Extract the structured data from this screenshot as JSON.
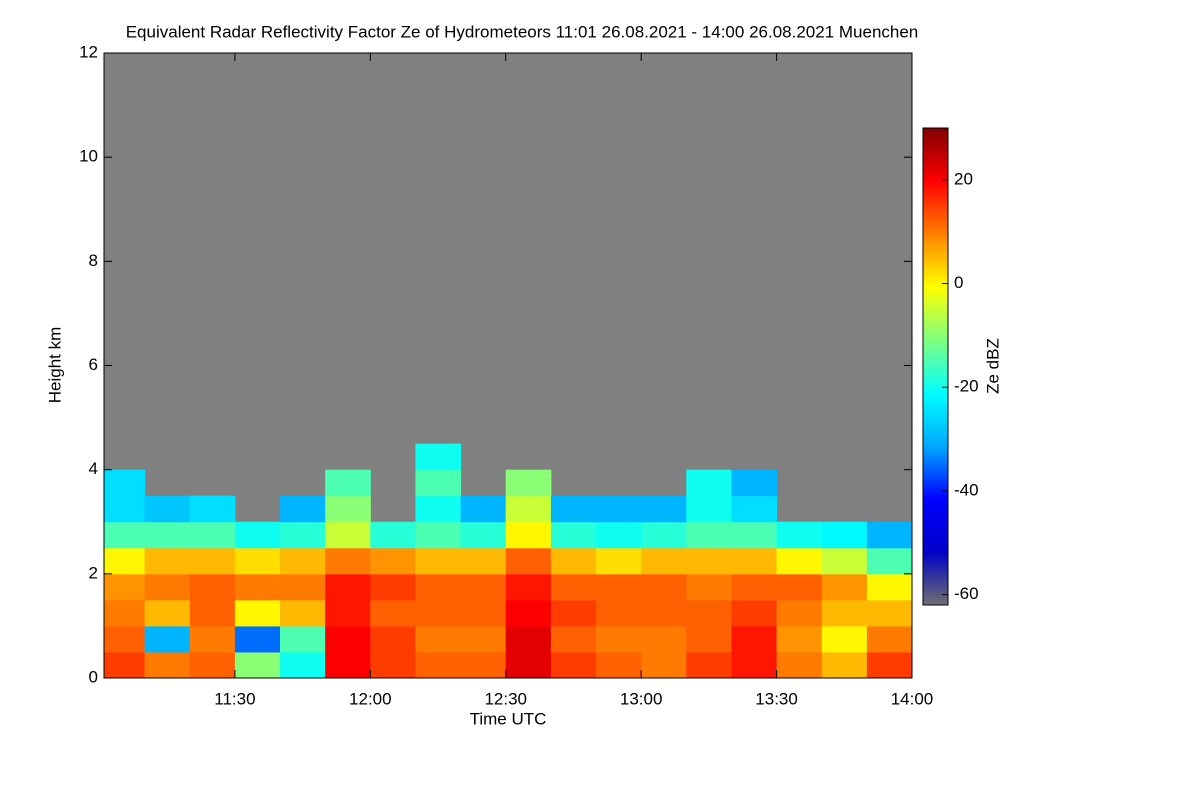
{
  "chart_data": {
    "type": "heatmap",
    "title": "Equivalent Radar Reflectivity Factor Ze of Hydrometeors   11:01 26.08.2021 - 14:00 26.08.2021 Muenchen",
    "x_label": "Time UTC",
    "y_label": "Height km",
    "colorbar_label": "Ze dBZ",
    "x": [
      11.0833,
      11.25,
      11.4167,
      11.5833,
      11.75,
      11.9167,
      12.0833,
      12.25,
      12.4167,
      12.5833,
      12.75,
      12.9167,
      13.0833,
      13.25,
      13.4167,
      13.5833,
      13.75,
      13.9167
    ],
    "y": [
      0.25,
      0.75,
      1.25,
      1.75,
      2.25,
      2.75,
      3.25,
      3.75,
      4.25
    ],
    "z": [
      [
        15,
        10,
        12,
        -10,
        -20,
        20,
        15,
        12,
        12,
        22,
        15,
        12,
        10,
        15,
        18,
        10,
        5,
        15
      ],
      [
        12,
        -30,
        10,
        -35,
        -15,
        20,
        15,
        10,
        10,
        22,
        12,
        10,
        10,
        12,
        18,
        8,
        0,
        10
      ],
      [
        10,
        5,
        12,
        0,
        5,
        18,
        12,
        12,
        12,
        20,
        15,
        12,
        12,
        12,
        15,
        10,
        5,
        5
      ],
      [
        8,
        10,
        12,
        10,
        10,
        18,
        15,
        12,
        12,
        18,
        12,
        12,
        12,
        10,
        12,
        12,
        8,
        0
      ],
      [
        0,
        5,
        5,
        2,
        5,
        10,
        8,
        5,
        5,
        12,
        5,
        2,
        5,
        5,
        5,
        0,
        -5,
        -15
      ],
      [
        -15,
        -15,
        -15,
        -20,
        -18,
        -5,
        -18,
        -15,
        -18,
        0,
        -18,
        -20,
        -18,
        -15,
        -15,
        -20,
        -22,
        -30
      ],
      [
        -25,
        -28,
        -25,
        null,
        -30,
        -10,
        null,
        -20,
        -30,
        -5,
        -30,
        -30,
        -30,
        -20,
        -25,
        null,
        null,
        null
      ],
      [
        -25,
        null,
        null,
        null,
        null,
        -15,
        null,
        -15,
        null,
        -10,
        null,
        null,
        null,
        -20,
        -30,
        null,
        null,
        null
      ],
      [
        null,
        null,
        null,
        null,
        null,
        null,
        null,
        -20,
        null,
        null,
        null,
        null,
        null,
        null,
        null,
        null,
        null,
        null
      ]
    ],
    "xlim": [
      11.0167,
      14.0
    ],
    "xticks": [
      {
        "value": 11.5,
        "label": "11:30"
      },
      {
        "value": 12,
        "label": "12:00"
      },
      {
        "value": 12.5,
        "label": "12:30"
      },
      {
        "value": 13,
        "label": "13:00"
      },
      {
        "value": 13.5,
        "label": "13:30"
      },
      {
        "value": 14,
        "label": "14:00"
      }
    ],
    "ylim": [
      0,
      12
    ],
    "yticks": [
      0,
      2,
      4,
      6,
      8,
      10,
      12
    ],
    "zlim": [
      -62,
      30
    ],
    "zticks": [
      -60,
      -40,
      -20,
      0,
      20
    ],
    "colors": [
      "#707070",
      "#0000c8",
      "#0000ff",
      "#00aaff",
      "#00ffff",
      "#80ff80",
      "#ffff00",
      "#ff8000",
      "#ff0000",
      "#800000"
    ],
    "nodata_color": "#808080"
  }
}
